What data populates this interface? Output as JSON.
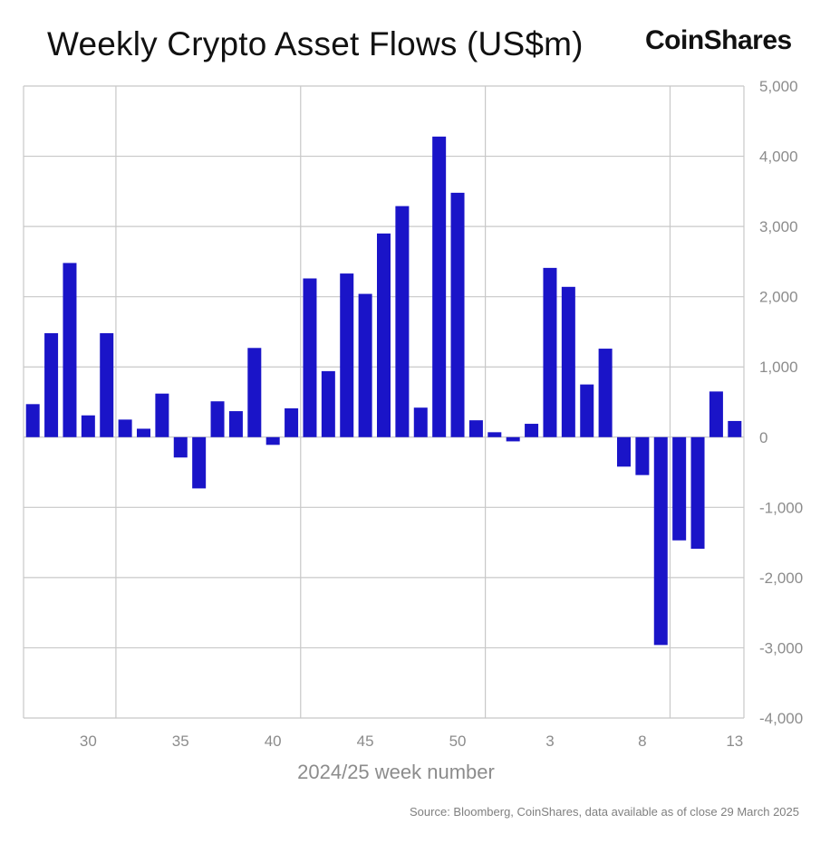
{
  "header": {
    "title": "Weekly Crypto Asset Flows (US$m)",
    "brand": "CoinShares"
  },
  "footer": {
    "source": "Source: Bloomberg, CoinShares, data available as of close 29 March 2025"
  },
  "colors": {
    "bar": "#1a14c8",
    "grid": "#c8c8c8",
    "axis_text": "#8c8c8c",
    "title_text": "#111111"
  },
  "chart_data": {
    "type": "bar",
    "title": "Weekly Crypto Asset Flows (US$m)",
    "xlabel": "2024/25 week number",
    "ylabel": "",
    "ylim": [
      -4000,
      5000
    ],
    "y_ticks": [
      5000,
      4000,
      3000,
      2000,
      1000,
      0,
      -1000,
      -2000,
      -3000,
      -4000
    ],
    "y_tick_labels": [
      "5,000",
      "4,000",
      "3,000",
      "2,000",
      "1,000",
      "0",
      "-1,000",
      "-2,000",
      "-3,000",
      "-4,000"
    ],
    "y_axis_position": "right",
    "grid": true,
    "x_tick_labels": [
      "30",
      "35",
      "40",
      "45",
      "50",
      "3",
      "8",
      "13"
    ],
    "categories": [
      "27",
      "28",
      "29",
      "30",
      "31",
      "32",
      "33",
      "34",
      "35",
      "36",
      "37",
      "38",
      "39",
      "40",
      "41",
      "42",
      "43",
      "44",
      "45",
      "46",
      "47",
      "48",
      "49",
      "50",
      "51",
      "52",
      "1",
      "2",
      "3",
      "4",
      "5",
      "6",
      "7",
      "8",
      "9",
      "10",
      "11",
      "12",
      "13"
    ],
    "values": [
      470,
      1480,
      2480,
      310,
      1480,
      250,
      120,
      620,
      -290,
      -730,
      510,
      370,
      1270,
      -110,
      410,
      2260,
      940,
      2330,
      2040,
      2900,
      3290,
      420,
      4280,
      3480,
      240,
      70,
      -60,
      190,
      2410,
      2140,
      750,
      1260,
      -420,
      -540,
      -2960,
      -1470,
      -1590,
      650,
      230
    ]
  }
}
